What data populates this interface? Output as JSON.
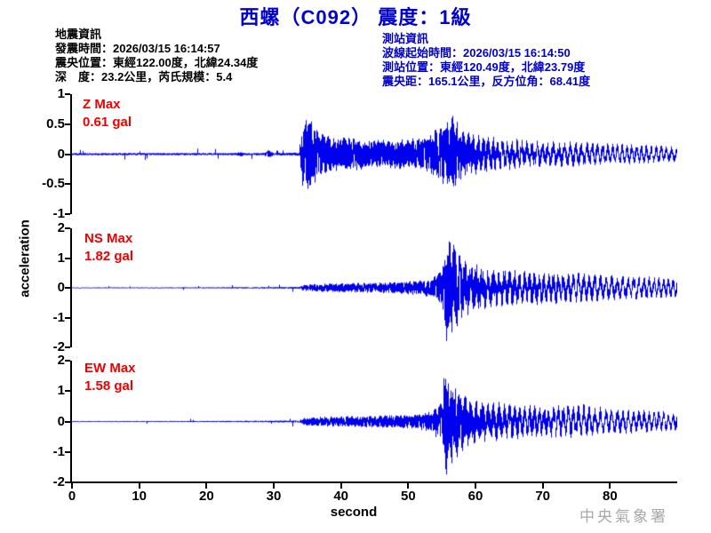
{
  "title": "西螺（C092） 震度：1級",
  "event_info": {
    "lines": [
      "地震資訊",
      "發震時間：2026/03/15 16:14:57",
      "震央位置：東經122.00度，北緯24.34度",
      "深　度：23.2公里，芮氏規模：5.4"
    ]
  },
  "station_info": {
    "lines": [
      "測站資訊",
      "波線起始時間：2026/03/15 16:14:50",
      "測站位置：東經120.49度，北緯23.79度",
      "震央距：165.1公里，反方位角：68.41度"
    ]
  },
  "watermark": "中央氣象署",
  "colors": {
    "trace": "#0000ee",
    "title": "#0000cc",
    "station_info": "#0000cc",
    "max_label": "#ee0000",
    "axis": "#000000",
    "watermark": "#a8a8a8"
  },
  "chart_data": {
    "type": "line",
    "xlabel": "second",
    "ylabel": "acceleration",
    "unit": "gal",
    "x_range": [
      0,
      90
    ],
    "x_ticks": [
      0,
      10,
      20,
      30,
      40,
      50,
      60,
      70,
      80
    ],
    "grid": false,
    "p_arrival_s": 34.0,
    "s_arrival_s": 55.8,
    "traces": [
      {
        "name": "Z",
        "label": "Z Max",
        "max_label": "0.61 gal",
        "max_gal": 0.61,
        "ylim": [
          -1,
          1
        ],
        "y_ticks": [
          1,
          0.5,
          0,
          -0.5,
          -1
        ],
        "seed": 11,
        "envelope": [
          [
            0,
            0.018
          ],
          [
            24.5,
            0.018
          ],
          [
            25,
            0.04
          ],
          [
            25.6,
            0.018
          ],
          [
            28.6,
            0.02
          ],
          [
            29.2,
            0.07
          ],
          [
            30,
            0.02
          ],
          [
            33.8,
            0.025
          ],
          [
            34.3,
            0.5
          ],
          [
            35.3,
            0.58
          ],
          [
            36.5,
            0.35
          ],
          [
            38,
            0.28
          ],
          [
            44,
            0.22
          ],
          [
            50,
            0.22
          ],
          [
            53,
            0.28
          ],
          [
            56,
            0.55
          ],
          [
            56.8,
            0.61
          ],
          [
            58.5,
            0.35
          ],
          [
            62,
            0.28
          ],
          [
            68,
            0.22
          ],
          [
            75,
            0.2
          ],
          [
            82,
            0.17
          ],
          [
            90,
            0.13
          ]
        ]
      },
      {
        "name": "NS",
        "label": "NS Max",
        "max_label": "1.82 gal",
        "max_gal": 1.82,
        "ylim": [
          -2,
          2
        ],
        "y_ticks": [
          2,
          1,
          0,
          -1,
          -2
        ],
        "seed": 23,
        "envelope": [
          [
            0,
            0.015
          ],
          [
            18,
            0.018
          ],
          [
            30,
            0.025
          ],
          [
            33.8,
            0.03
          ],
          [
            34.5,
            0.1
          ],
          [
            38,
            0.13
          ],
          [
            45,
            0.16
          ],
          [
            50,
            0.2
          ],
          [
            53.5,
            0.28
          ],
          [
            55,
            0.6
          ],
          [
            55.9,
            1.85
          ],
          [
            57.2,
            1.2
          ],
          [
            58.5,
            0.85
          ],
          [
            61,
            0.7
          ],
          [
            65,
            0.6
          ],
          [
            70,
            0.55
          ],
          [
            75,
            0.5
          ],
          [
            82,
            0.4
          ],
          [
            90,
            0.32
          ]
        ]
      },
      {
        "name": "EW",
        "label": "EW Max",
        "max_label": "1.58 gal",
        "max_gal": 1.58,
        "ylim": [
          -2,
          2
        ],
        "y_ticks": [
          2,
          1,
          0,
          -1,
          -2
        ],
        "seed": 37,
        "envelope": [
          [
            0,
            0.015
          ],
          [
            18,
            0.018
          ],
          [
            30,
            0.025
          ],
          [
            33.8,
            0.035
          ],
          [
            34.6,
            0.12
          ],
          [
            38,
            0.15
          ],
          [
            45,
            0.18
          ],
          [
            50,
            0.22
          ],
          [
            53.5,
            0.3
          ],
          [
            54.8,
            0.6
          ],
          [
            55.6,
            1.62
          ],
          [
            57,
            1.1
          ],
          [
            58.5,
            0.85
          ],
          [
            61,
            0.68
          ],
          [
            65,
            0.58
          ],
          [
            70,
            0.5
          ],
          [
            76,
            0.55
          ],
          [
            80,
            0.42
          ],
          [
            90,
            0.3
          ]
        ]
      }
    ]
  }
}
